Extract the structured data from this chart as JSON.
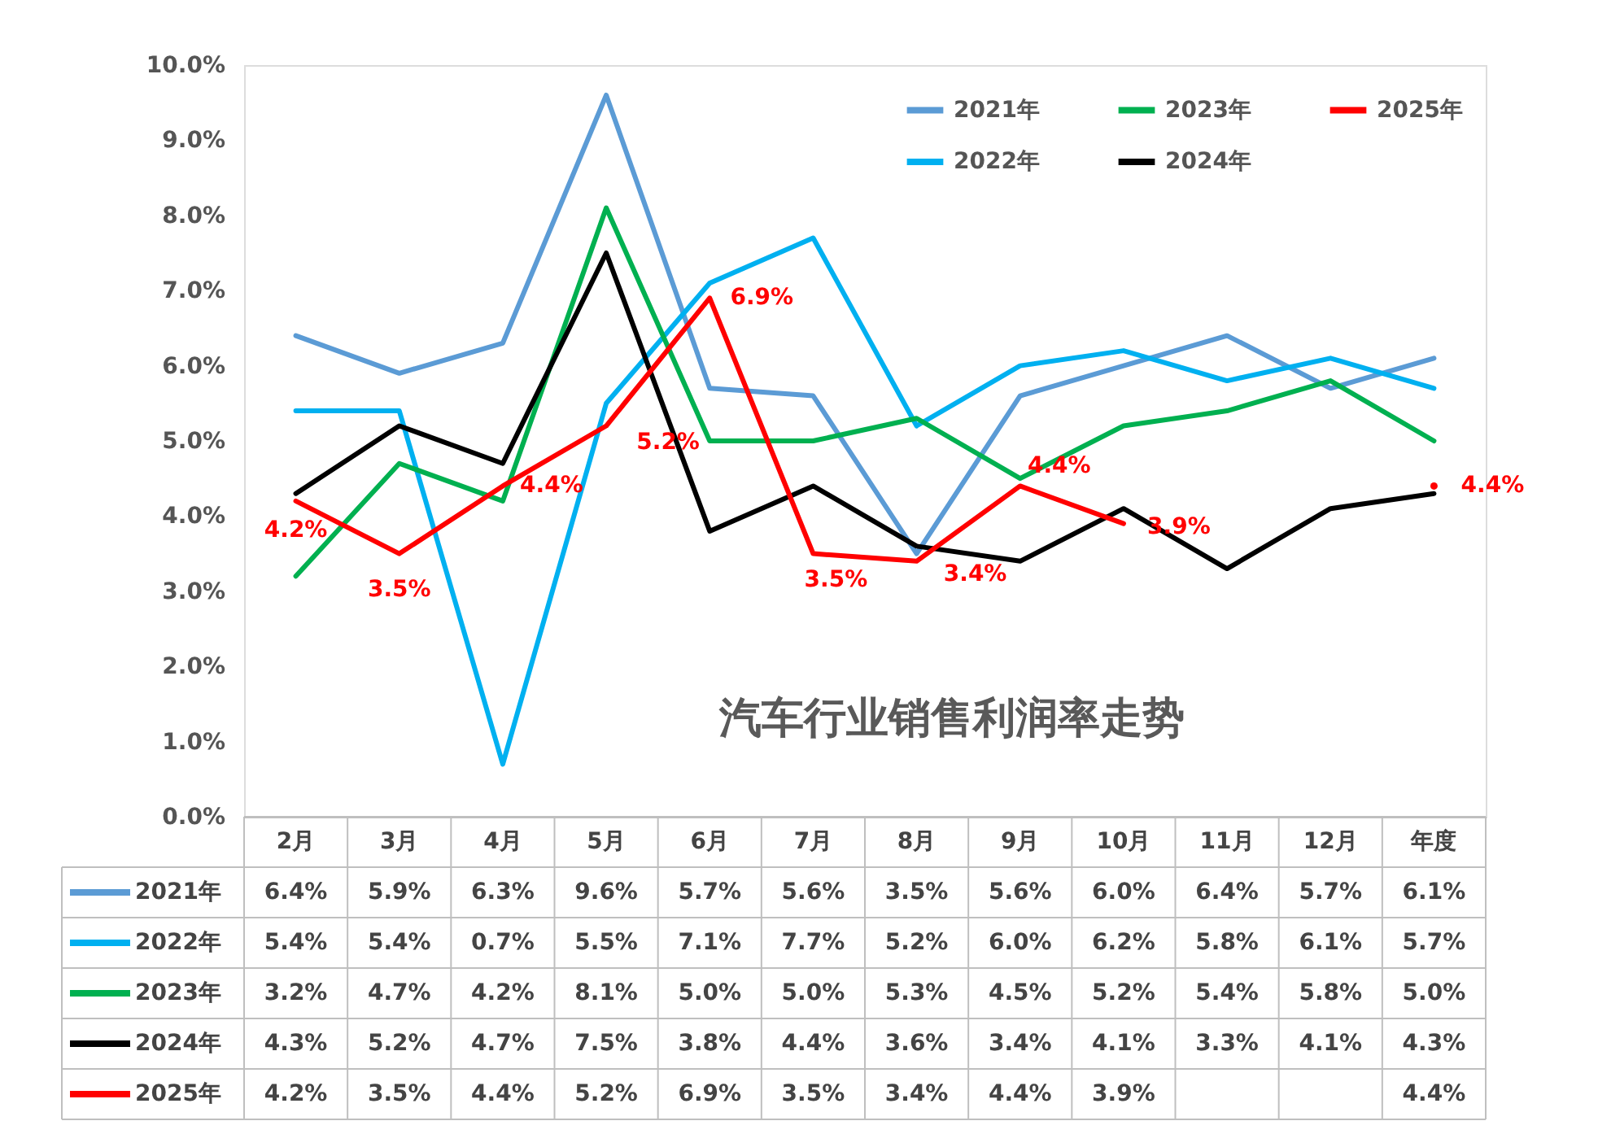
{
  "chart_data": {
    "type": "line",
    "title": "汽车行业销售利润率走势",
    "categories": [
      "2月",
      "3月",
      "4月",
      "5月",
      "6月",
      "7月",
      "8月",
      "9月",
      "10月",
      "11月",
      "12月",
      "年度"
    ],
    "ylim": [
      0,
      10
    ],
    "yticks": [
      {
        "value": 0,
        "label": "0.0%"
      },
      {
        "value": 1,
        "label": "1.0%"
      },
      {
        "value": 2,
        "label": "2.0%"
      },
      {
        "value": 3,
        "label": "3.0%"
      },
      {
        "value": 4,
        "label": "4.0%"
      },
      {
        "value": 5,
        "label": "5.0%"
      },
      {
        "value": 6,
        "label": "6.0%"
      },
      {
        "value": 7,
        "label": "7.0%"
      },
      {
        "value": 8,
        "label": "8.0%"
      },
      {
        "value": 9,
        "label": "9.0%"
      },
      {
        "value": 10,
        "label": "10.0%"
      }
    ],
    "grid": false,
    "legend": "top right",
    "line_style": "solid",
    "series": [
      {
        "name": "2021年",
        "color": "#5b9bd5",
        "values": [
          6.4,
          5.9,
          6.3,
          9.6,
          5.7,
          5.6,
          3.5,
          5.6,
          6.0,
          6.4,
          5.7,
          6.1
        ],
        "value_labels": [
          "6.4%",
          "5.9%",
          "6.3%",
          "9.6%",
          "5.7%",
          "5.6%",
          "3.5%",
          "5.6%",
          "6.0%",
          "6.4%",
          "5.7%",
          "6.1%"
        ]
      },
      {
        "name": "2022年",
        "color": "#00b0f0",
        "values": [
          5.4,
          5.4,
          0.7,
          5.5,
          7.1,
          7.7,
          5.2,
          6.0,
          6.2,
          5.8,
          6.1,
          5.7
        ],
        "value_labels": [
          "5.4%",
          "5.4%",
          "0.7%",
          "5.5%",
          "7.1%",
          "7.7%",
          "5.2%",
          "6.0%",
          "6.2%",
          "5.8%",
          "6.1%",
          "5.7%"
        ]
      },
      {
        "name": "2023年",
        "color": "#00b050",
        "values": [
          3.2,
          4.7,
          4.2,
          8.1,
          5.0,
          5.0,
          5.3,
          4.5,
          5.2,
          5.4,
          5.8,
          5.0
        ],
        "value_labels": [
          "3.2%",
          "4.7%",
          "4.2%",
          "8.1%",
          "5.0%",
          "5.0%",
          "5.3%",
          "4.5%",
          "5.2%",
          "5.4%",
          "5.8%",
          "5.0%"
        ]
      },
      {
        "name": "2024年",
        "color": "#000000",
        "values": [
          4.3,
          5.2,
          4.7,
          7.5,
          3.8,
          4.4,
          3.6,
          3.4,
          4.1,
          3.3,
          4.1,
          4.3
        ],
        "value_labels": [
          "4.3%",
          "5.2%",
          "4.7%",
          "7.5%",
          "3.8%",
          "4.4%",
          "3.6%",
          "3.4%",
          "4.1%",
          "3.3%",
          "4.1%",
          "4.3%"
        ]
      },
      {
        "name": "2025年",
        "color": "#ff0000",
        "values": [
          4.2,
          3.5,
          4.4,
          5.2,
          6.9,
          3.5,
          3.4,
          4.4,
          3.9,
          null,
          null,
          4.4
        ],
        "value_labels": [
          "4.2%",
          "3.5%",
          "4.4%",
          "5.2%",
          "6.9%",
          "3.5%",
          "3.4%",
          "4.4%",
          "3.9%",
          null,
          null,
          "4.4%"
        ]
      }
    ],
    "annotations": [
      {
        "text": "4.2%",
        "x": "2月",
        "y": 4.2
      },
      {
        "text": "3.5%",
        "x": "3月",
        "y": 3.5
      },
      {
        "text": "4.4%",
        "x": "4月",
        "y": 4.4
      },
      {
        "text": "5.2%",
        "x": "5月",
        "y": 5.2
      },
      {
        "text": "6.9%",
        "x": "6月",
        "y": 6.9
      },
      {
        "text": "3.5%",
        "x": "7月",
        "y": 3.5
      },
      {
        "text": "3.4%",
        "x": "8月",
        "y": 3.4
      },
      {
        "text": "4.4%",
        "x": "9月",
        "y": 4.4
      },
      {
        "text": "3.9%",
        "x": "10月",
        "y": 3.9
      },
      {
        "text": "4.4%",
        "x": "年度",
        "y": 4.4
      }
    ]
  }
}
